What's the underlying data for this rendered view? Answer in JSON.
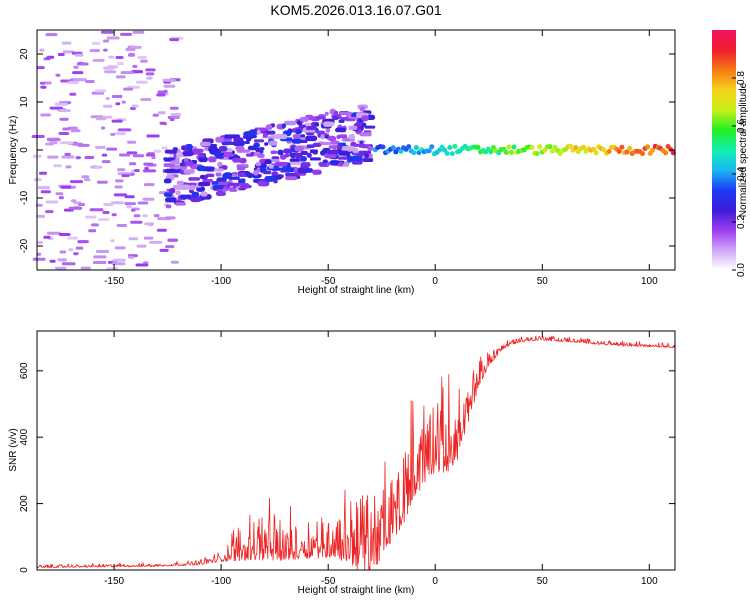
{
  "title": "KOM5.2026.013.16.07.G01",
  "chart_data": [
    {
      "type": "heatmap",
      "title": "KOM5.2026.013.16.07.G01",
      "xlabel": "Height of straight line (km)",
      "ylabel": "Frequency (Hz)",
      "xlim": [
        -186,
        112
      ],
      "ylim": [
        -25,
        25
      ],
      "x_ticks": [
        -150,
        -100,
        -50,
        0,
        50,
        100
      ],
      "y_ticks": [
        -20,
        -10,
        0,
        10,
        20
      ],
      "colorbar": {
        "label": "Normalized spectral amplitude",
        "range": [
          0,
          1
        ],
        "ticks": [
          0.0,
          0.2,
          0.4,
          0.6,
          0.8
        ],
        "colors": [
          "#ffffff",
          "#cfa6f5",
          "#9b3cf0",
          "#3b1bd8",
          "#1b3cf5",
          "#19b8f0",
          "#12f0b0",
          "#22f020",
          "#c8f018",
          "#f5d21a",
          "#f57a14",
          "#f01c2c",
          "#f01460"
        ]
      },
      "features": [
        {
          "name": "scattered weak echoes",
          "x_range": [
            -186,
            -120
          ],
          "freq_range": [
            -25,
            25
          ],
          "amplitude": 0.05
        },
        {
          "name": "broad echo band",
          "x_range": [
            -125,
            -30
          ],
          "freq_center_start": -6,
          "freq_center_end": 4,
          "amplitude": 0.25
        },
        {
          "name": "narrow direct-wave line",
          "x_range": [
            -28,
            112
          ],
          "freq_center": 0,
          "amplitude_start": 0.35,
          "amplitude_end": 0.9
        }
      ]
    },
    {
      "type": "line",
      "xlabel": "Height of straight line (km)",
      "ylabel": "SNR (v/v)",
      "xlim": [
        -186,
        112
      ],
      "ylim": [
        0,
        720
      ],
      "x_ticks": [
        -150,
        -100,
        -50,
        0,
        50,
        100
      ],
      "y_ticks": [
        0,
        200,
        400,
        600
      ],
      "series_color": "#ee2222",
      "envelope": {
        "x": [
          -186,
          -160,
          -130,
          -110,
          -100,
          -90,
          -80,
          -70,
          -60,
          -50,
          -40,
          -35,
          -30,
          -25,
          -20,
          -15,
          -10,
          -5,
          0,
          5,
          10,
          15,
          20,
          25,
          30,
          35,
          40,
          50,
          60,
          70,
          80,
          90,
          100,
          112
        ],
        "base": [
          8,
          10,
          12,
          18,
          30,
          50,
          55,
          50,
          55,
          60,
          55,
          40,
          20,
          80,
          120,
          180,
          260,
          300,
          340,
          330,
          360,
          450,
          560,
          620,
          660,
          680,
          690,
          695,
          690,
          685,
          680,
          676,
          675,
          672
        ],
        "spread": [
          8,
          8,
          8,
          12,
          25,
          110,
          130,
          110,
          100,
          120,
          170,
          250,
          200,
          200,
          200,
          220,
          230,
          220,
          220,
          200,
          180,
          110,
          70,
          40,
          25,
          18,
          15,
          12,
          12,
          12,
          12,
          12,
          12,
          12
        ]
      },
      "features": [
        {
          "name": "noise floor",
          "x_range": [
            -186,
            -115
          ],
          "snr": 10
        },
        {
          "name": "highest spike",
          "x": -34,
          "snr": 580
        },
        {
          "name": "plateau",
          "x_range": [
            35,
            112
          ],
          "snr": 680
        }
      ]
    }
  ]
}
